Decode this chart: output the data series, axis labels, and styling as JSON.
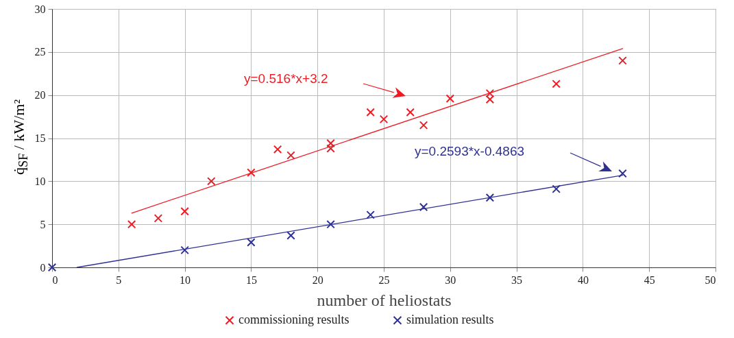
{
  "chart_data": {
    "type": "scatter",
    "xlabel": "number of heliostats",
    "ylabel": "q̇$_{SF}$ / kW/m²",
    "xlim": [
      0,
      50
    ],
    "xticks": [
      0,
      5,
      10,
      15,
      20,
      25,
      30,
      35,
      40,
      45,
      50
    ],
    "ylim": [
      0,
      30
    ],
    "yticks": [
      0,
      5,
      10,
      15,
      20,
      25,
      30
    ],
    "grid": true,
    "legend": "bottom",
    "marker": "cross",
    "annotations": [
      "y=0.516*x+3.2",
      "y=0.2593*x-0.4863"
    ],
    "series": [
      {
        "name": "commissioning results",
        "color": "#ed1c24",
        "x": [
          6,
          8,
          10,
          12,
          15,
          17,
          18,
          21,
          21,
          24,
          25,
          27,
          28,
          30,
          33,
          33,
          38,
          43
        ],
        "values": [
          5.0,
          5.7,
          6.5,
          10.0,
          11.0,
          13.7,
          13.0,
          14.4,
          13.8,
          18.0,
          17.2,
          18.0,
          16.5,
          19.6,
          20.2,
          19.5,
          21.3,
          24.0
        ]
      },
      {
        "name": "simulation results",
        "color": "#2e3192",
        "x": [
          0,
          10,
          15,
          18,
          21,
          24,
          28,
          33,
          38,
          43
        ],
        "values": [
          0.0,
          2.0,
          2.9,
          3.7,
          5.0,
          6.1,
          7.0,
          8.1,
          9.1,
          10.9
        ]
      },
      {
        "type": "line",
        "color": "#ed1c24",
        "x": [
          6,
          43
        ],
        "values": [
          6.3,
          25.4
        ],
        "marker": "none"
      },
      {
        "type": "line",
        "color": "#2e3192",
        "x": [
          1.875,
          43
        ],
        "values": [
          0.0,
          10.7
        ],
        "marker": "none"
      }
    ]
  }
}
